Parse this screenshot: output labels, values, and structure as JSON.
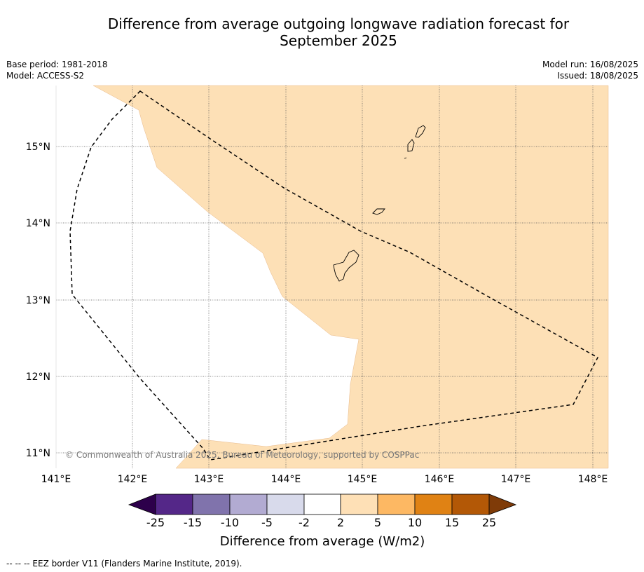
{
  "title_line1": "Difference from average outgoing longwave radiation forecast for",
  "title_line2": "September 2025",
  "base_period": "Base period: 1981-2018",
  "model": "Model: ACCESS-S2",
  "model_run": "Model run: 16/08/2025",
  "issued": "Issued: 18/08/2025",
  "copyright": "© Commonwealth of Australia 2025, Bureau of Meteorology, supported by COSPPac",
  "footer": "--  --  -- EEZ border V11 (Flanders Marine Institute, 2019).",
  "lon_labels": [
    "141°E",
    "142°E",
    "143°E",
    "144°E",
    "145°E",
    "146°E",
    "147°E",
    "148°E"
  ],
  "lat_labels": [
    "15°N",
    "14°N",
    "13°N",
    "12°N",
    "11°N"
  ],
  "colorbar": {
    "label": "Difference from average (W/m2)",
    "ticks": [
      "-25",
      "-15",
      "-10",
      "-5",
      "-2",
      "2",
      "5",
      "10",
      "15",
      "25"
    ],
    "colors": [
      "#2d004b",
      "#542788",
      "#8073ac",
      "#b2abd2",
      "#d8daeb",
      "#ffffff",
      "#fee0b6",
      "#fdb863",
      "#e08214",
      "#b35806",
      "#7f3b08"
    ]
  },
  "map_fill_color": "#fde0b6"
}
